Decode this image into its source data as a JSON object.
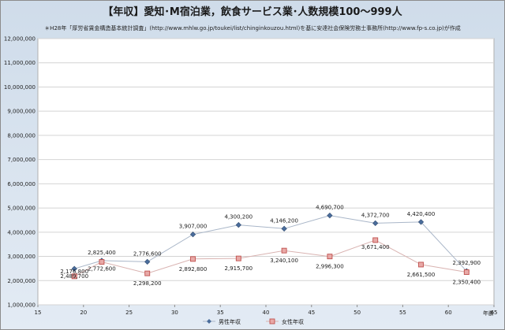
{
  "chart_data": {
    "type": "line",
    "title": "【年収】愛知･M宿泊業，飲食サービス業･人数規模100〜999人",
    "subtitle": "＊H28年「厚労省賃金構造基本統計調査」(http://www.mhlw.go.jp/toukei/list/chinginkouzou.html)を基に安達社会保険労務士事務所(http://www.fp-s.co.jp)が作成",
    "xlabel": "年齢",
    "ylabel": "",
    "xlim": [
      15,
      65
    ],
    "ylim": [
      1000000,
      12000000
    ],
    "x_ticks": [
      15,
      20,
      25,
      30,
      35,
      40,
      45,
      50,
      55,
      60,
      65
    ],
    "y_ticks": [
      1000000,
      2000000,
      3000000,
      4000000,
      5000000,
      6000000,
      7000000,
      8000000,
      9000000,
      10000000,
      11000000,
      12000000
    ],
    "y_tick_labels": [
      "1,000,000",
      "2,000,000",
      "3,000,000",
      "4,000,000",
      "5,000,000",
      "6,000,000",
      "7,000,000",
      "8,000,000",
      "9,000,000",
      "10,000,000",
      "11,000,000",
      "12,000,000"
    ],
    "grid": true,
    "legend": "bottom",
    "series": [
      {
        "name": "男性年収",
        "color": "#4a6d9c",
        "marker": "diamond",
        "x": [
          19,
          22,
          27,
          32,
          37,
          42,
          47,
          52,
          57,
          62
        ],
        "values": [
          2489700,
          2825400,
          2776600,
          3907000,
          4300200,
          4146200,
          4690700,
          4372700,
          4420400,
          2392900
        ],
        "labels": [
          "2,489,700",
          "2,825,400",
          "2,776,600",
          "3,907,000",
          "4,300,200",
          "4,146,200",
          "4,690,700",
          "4,372,700",
          "4,420,400",
          "2,392,900"
        ]
      },
      {
        "name": "女性年収",
        "color": "#c0504d",
        "marker": "square",
        "x": [
          19,
          22,
          27,
          32,
          37,
          42,
          47,
          52,
          57,
          62
        ],
        "values": [
          2176800,
          2772600,
          2298200,
          2892800,
          2915700,
          3240100,
          2996300,
          3671400,
          2661500,
          2350400
        ],
        "labels": [
          "2,176,800",
          "2,772,600",
          "2,298,200",
          "2,892,800",
          "2,915,700",
          "3,240,100",
          "2,996,300",
          "3,671,400",
          "2,661,500",
          "2,350,400"
        ]
      }
    ]
  }
}
